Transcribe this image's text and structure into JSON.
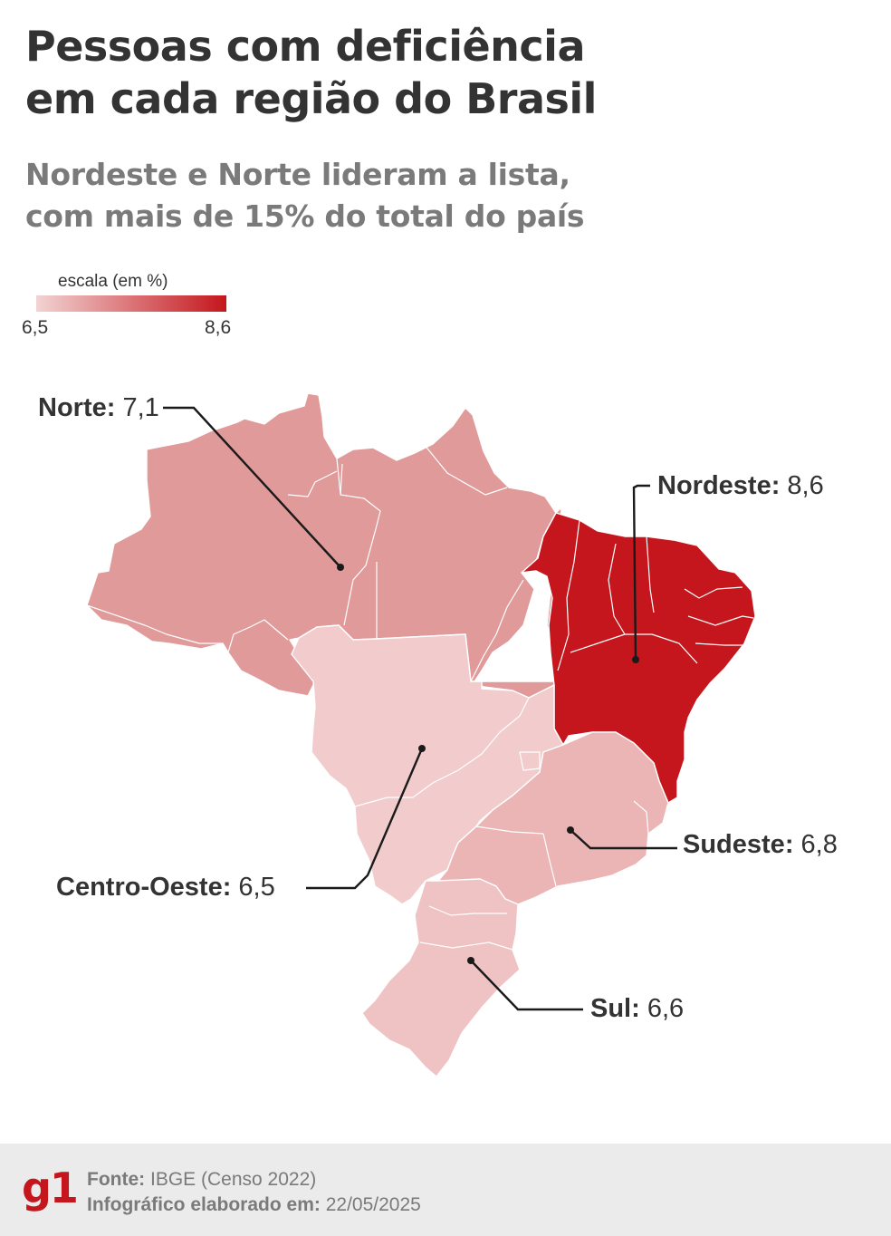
{
  "header": {
    "title_line1": "Pessoas com deficiência",
    "title_line2": "em cada região do Brasil",
    "subtitle_line1": "Nordeste e Norte lideram a lista,",
    "subtitle_line2": "com mais de 15% do total do país"
  },
  "legend": {
    "title": "escala (em %)",
    "min": "6,5",
    "max": "8,6",
    "color_min": "#f2d3d3",
    "color_max": "#c4161c"
  },
  "regions": [
    {
      "id": "norte",
      "name": "Norte:",
      "value": "7,1",
      "color": "#e09a9a"
    },
    {
      "id": "nordeste",
      "name": "Nordeste:",
      "value": "8,6",
      "color": "#c4161c"
    },
    {
      "id": "sudeste",
      "name": "Sudeste:",
      "value": "6,8",
      "color": "#ebb5b5"
    },
    {
      "id": "centro-oeste",
      "name": "Centro-Oeste:",
      "value": "6,5",
      "color": "#f2cccc"
    },
    {
      "id": "sul",
      "name": "Sul:",
      "value": "6,6",
      "color": "#efc3c3"
    }
  ],
  "footer": {
    "logo": "g1",
    "source_label": "Fonte:",
    "source_value": "IBGE (Censo 2022)",
    "date_label": "Infográfico elaborado em:",
    "date_value": "22/05/2025"
  }
}
